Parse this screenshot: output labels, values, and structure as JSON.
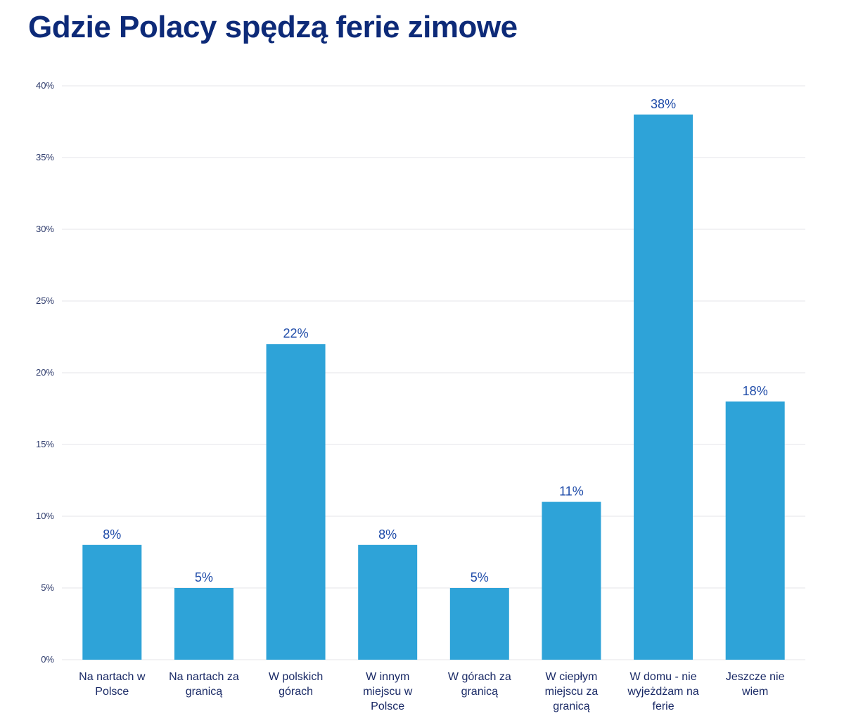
{
  "chart_data": {
    "type": "bar",
    "title": "Gdzie Polacy spędzą ferie zimowe",
    "xlabel": "",
    "ylabel": "",
    "ylim": [
      0,
      40
    ],
    "yticks": [
      "0%",
      "5%",
      "10%",
      "15%",
      "20%",
      "25%",
      "30%",
      "35%",
      "40%"
    ],
    "ytick_values": [
      0,
      5,
      10,
      15,
      20,
      25,
      30,
      35,
      40
    ],
    "grid": true,
    "legend": "none",
    "bar_color": "#2ea3d8",
    "categories": [
      [
        "Na nartach w",
        "Polsce"
      ],
      [
        "Na nartach za",
        "granicą"
      ],
      [
        "W polskich",
        "górach"
      ],
      [
        "W innym",
        "miejscu w",
        "Polsce"
      ],
      [
        "W górach za",
        "granicą"
      ],
      [
        "W ciepłym",
        "miejscu za",
        "granicą"
      ],
      [
        "W domu - nie",
        "wyjeżdżam na",
        "ferie"
      ],
      [
        "Jeszcze nie",
        "wiem"
      ]
    ],
    "values": [
      8,
      5,
      22,
      8,
      5,
      11,
      38,
      18
    ],
    "data_labels": [
      "8%",
      "5%",
      "22%",
      "8%",
      "5%",
      "11%",
      "38%",
      "18%"
    ]
  }
}
